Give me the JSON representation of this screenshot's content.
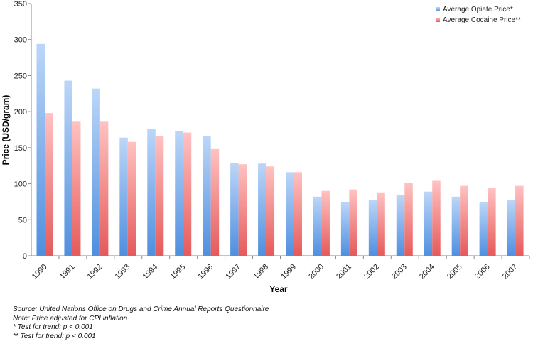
{
  "chart_data": {
    "type": "bar",
    "title": "",
    "xlabel": "Year",
    "ylabel": "Price (USD/gram)",
    "ylim": [
      0,
      350
    ],
    "yticks": [
      0,
      50,
      100,
      150,
      200,
      250,
      300,
      350
    ],
    "grid": false,
    "legend_position": "top-right",
    "categories": [
      "1990",
      "1991",
      "1992",
      "1993",
      "1994",
      "1995",
      "1996",
      "1997",
      "1998",
      "1999",
      "2000",
      "2001",
      "2002",
      "2003",
      "2004",
      "2005",
      "2006",
      "2007"
    ],
    "series": [
      {
        "name": "Average Opiate Price*",
        "color_top": "#bcd6f8",
        "color_bottom": "#4f8fdf",
        "values": [
          294,
          243,
          232,
          164,
          176,
          173,
          166,
          129,
          128,
          116,
          82,
          74,
          77,
          84,
          89,
          82,
          74,
          77
        ]
      },
      {
        "name": "Average Cocaine Price**",
        "color_top": "#ffc2c2",
        "color_bottom": "#e55a5a",
        "values": [
          198,
          186,
          186,
          158,
          166,
          171,
          148,
          127,
          124,
          116,
          90,
          92,
          88,
          101,
          104,
          97,
          94,
          97
        ]
      }
    ]
  },
  "notes": {
    "source": "Source: United Nations Office on Drugs and Crime Annual Reports Questionnaire",
    "note": "Note: Price adjusted for CPI inflation",
    "opiate_test": "* Test for trend: p < 0.001",
    "cocaine_test": "** Test for trend: p < 0.001"
  }
}
